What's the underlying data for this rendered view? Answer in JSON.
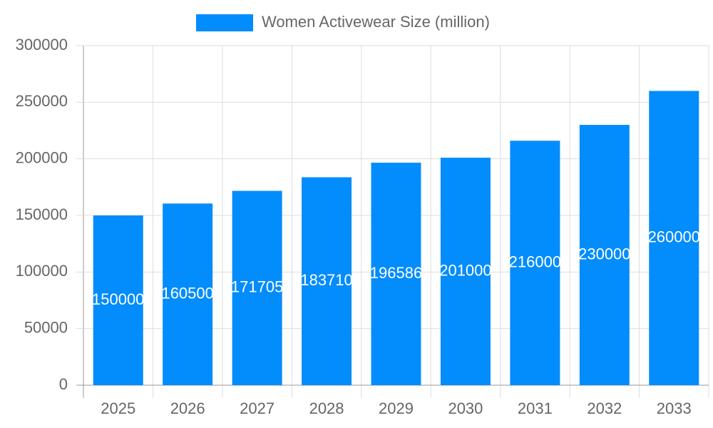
{
  "chart_data": {
    "type": "bar",
    "categories": [
      "2025",
      "2026",
      "2027",
      "2028",
      "2029",
      "2030",
      "2031",
      "2032",
      "2033"
    ],
    "series": [
      {
        "name": "Women Activewear Size (million)",
        "color": "#038cfc",
        "values": [
          150000,
          160500,
          171705,
          183710,
          196586,
          201000,
          216000,
          230000,
          260000
        ]
      }
    ],
    "ylim": [
      0,
      300000
    ],
    "yticks": [
      0,
      50000,
      100000,
      150000,
      200000,
      250000,
      300000
    ],
    "grid": true
  }
}
